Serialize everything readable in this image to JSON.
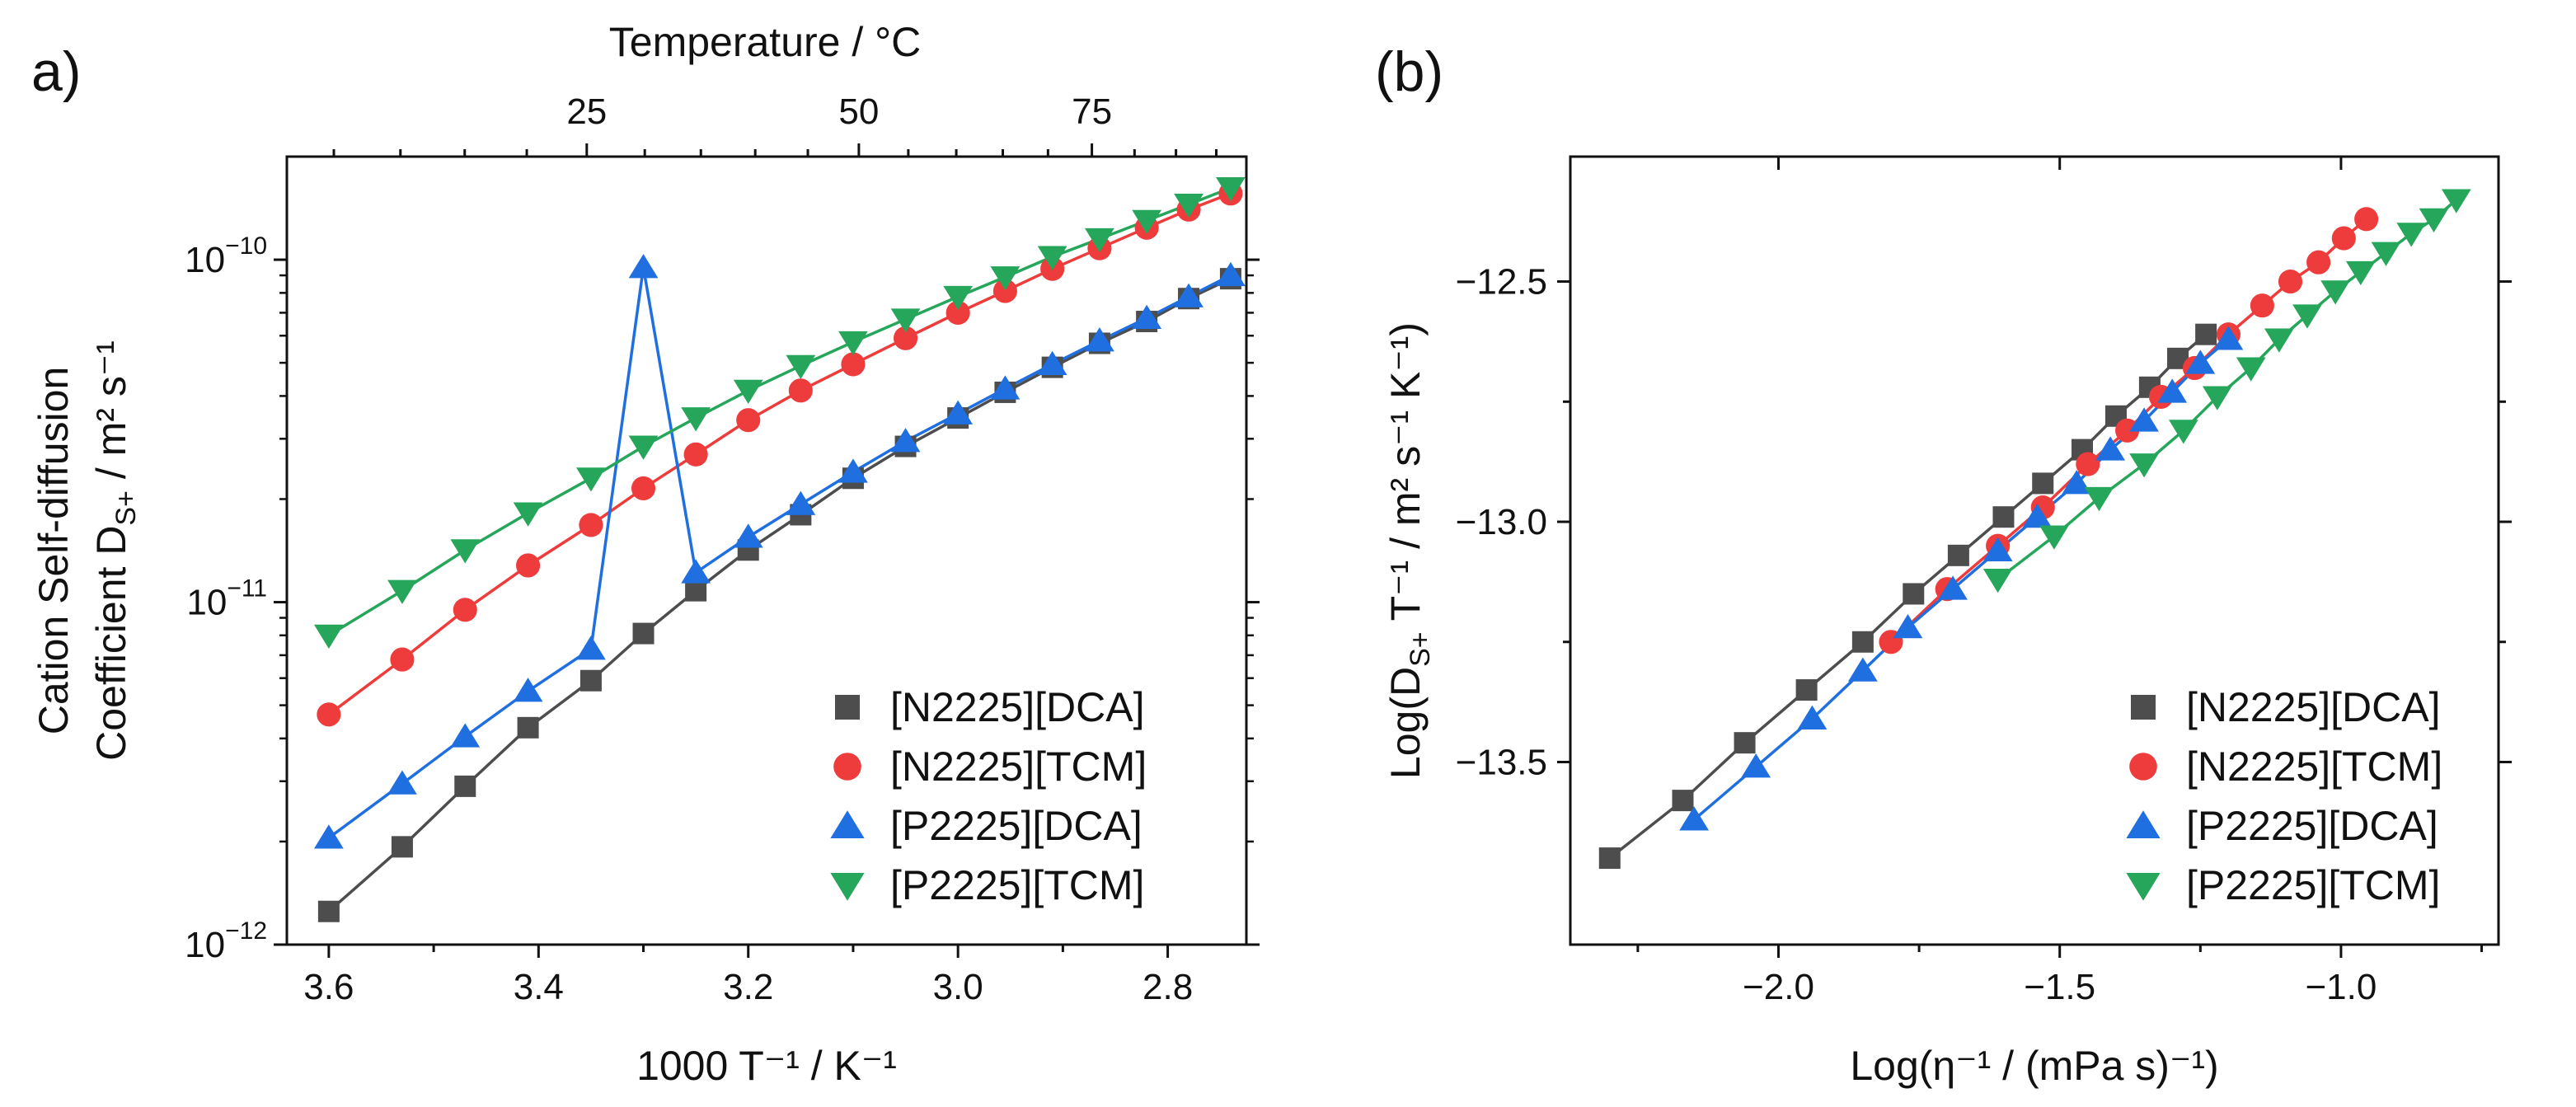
{
  "colors": {
    "N2225_DCA": "#4d4d4d",
    "N2225_TCM": "#ee3b3b",
    "P2225_DCA": "#1f6fe0",
    "P2225_TCM": "#26a65b"
  },
  "chart_data": [
    {
      "panel_label": "a)",
      "type": "line",
      "yscale": "log",
      "xlim": [
        3.64,
        2.725
      ],
      "ylim": [
        1e-12,
        2e-10
      ],
      "xticks": [
        "3.6",
        "3.4",
        "3.2",
        "3.0",
        "2.8"
      ],
      "xtick_values": [
        3.6,
        3.4,
        3.2,
        3.0,
        2.8
      ],
      "yticks": [
        "10",
        "10",
        "10"
      ],
      "ytick_exponents": [
        "−12",
        "−11",
        "−10"
      ],
      "ytick_values": [
        1e-12,
        1e-11,
        1e-10
      ],
      "xlabel": "1000 T⁻¹ / K⁻¹",
      "ylabel_line1": "Cation Self-diffusion",
      "ylabel_line2": "Coefficient D",
      "ylabel_sub": "S+",
      "ylabel_units": " / m² s⁻¹",
      "top_axis_title": "Temperature / °C",
      "top_ticks": [
        "25",
        "50",
        "75"
      ],
      "top_tick_celsius": [
        25,
        50,
        75
      ],
      "legend_position": "lower-right",
      "series": [
        {
          "name": "[N2225][DCA]",
          "marker": "square",
          "x": [
            3.6,
            3.53,
            3.47,
            3.41,
            3.35,
            3.3,
            3.25,
            3.2,
            3.15,
            3.1,
            3.05,
            3.0,
            2.955,
            2.91,
            2.865,
            2.82,
            2.78,
            2.74
          ],
          "y": [
            1.25e-12,
            1.93e-12,
            2.9e-12,
            4.3e-12,
            5.9e-12,
            8.1e-12,
            1.08e-11,
            1.42e-11,
            1.8e-11,
            2.3e-11,
            2.85e-11,
            3.45e-11,
            4.1e-11,
            4.85e-11,
            5.7e-11,
            6.6e-11,
            7.7e-11,
            8.8e-11
          ]
        },
        {
          "name": "[N2225][TCM]",
          "marker": "circle",
          "x": [
            3.6,
            3.53,
            3.47,
            3.41,
            3.35,
            3.3,
            3.25,
            3.2,
            3.15,
            3.1,
            3.05,
            3.0,
            2.955,
            2.91,
            2.865,
            2.82,
            2.78,
            2.74
          ],
          "y": [
            4.7e-12,
            6.8e-12,
            9.5e-12,
            1.28e-11,
            1.68e-11,
            2.15e-11,
            2.7e-11,
            3.4e-11,
            4.15e-11,
            4.95e-11,
            5.9e-11,
            7e-11,
            8.1e-11,
            9.4e-11,
            1.08e-10,
            1.24e-10,
            1.4e-10,
            1.56e-10
          ]
        },
        {
          "name": "[P2225][DCA]",
          "marker": "triangle-up",
          "x": [
            3.6,
            3.53,
            3.47,
            3.41,
            3.35,
            3.3,
            3.25,
            3.2,
            3.15,
            3.1,
            3.05,
            3.0,
            2.955,
            2.91,
            2.865,
            2.82,
            2.78,
            2.74
          ],
          "y": [
            2.05e-12,
            2.95e-12,
            4.05e-12,
            5.5e-12,
            7.3e-12,
            9.5e-11,
            1.22e-11,
            1.55e-11,
            1.93e-11,
            2.4e-11,
            2.95e-11,
            3.55e-11,
            4.2e-11,
            4.95e-11,
            5.8e-11,
            6.75e-11,
            7.8e-11,
            9e-11
          ]
        },
        {
          "name": "[P2225][TCM]",
          "marker": "triangle-down",
          "x": [
            3.6,
            3.53,
            3.47,
            3.41,
            3.35,
            3.3,
            3.25,
            3.2,
            3.15,
            3.1,
            3.05,
            3.0,
            2.955,
            2.91,
            2.865,
            2.82,
            2.78,
            2.74
          ],
          "y": [
            8e-12,
            1.08e-11,
            1.42e-11,
            1.82e-11,
            2.3e-11,
            2.85e-11,
            3.45e-11,
            4.15e-11,
            4.9e-11,
            5.75e-11,
            6.7e-11,
            7.8e-11,
            8.9e-11,
            1.02e-10,
            1.15e-10,
            1.3e-10,
            1.45e-10,
            1.62e-10
          ]
        }
      ]
    },
    {
      "panel_label": "(b)",
      "type": "line",
      "yscale": "linear",
      "xlim": [
        -2.37,
        -0.72
      ],
      "ylim": [
        -13.88,
        -12.24
      ],
      "xticks": [
        "−2.0",
        "−1.5",
        "−1.0"
      ],
      "xtick_values": [
        -2.0,
        -1.5,
        -1.0
      ],
      "yticks": [
        "−12.5",
        "−13.0",
        "−13.5"
      ],
      "ytick_values": [
        -12.5,
        -13.0,
        -13.5
      ],
      "xlabel": "Log(η⁻¹ / (mPa s)⁻¹)",
      "ylabel_prefix": "Log(D",
      "ylabel_sub": "S+",
      "ylabel_rest": " T⁻¹ / m² s⁻¹ K⁻¹)",
      "legend_position": "lower-right",
      "series": [
        {
          "name": "[N2225][DCA]",
          "marker": "square",
          "x": [
            -2.3,
            -2.17,
            -2.06,
            -1.95,
            -1.85,
            -1.76,
            -1.68,
            -1.6,
            -1.53,
            -1.46,
            -1.4,
            -1.34,
            -1.29,
            -1.24
          ],
          "y": [
            -13.7,
            -13.58,
            -13.46,
            -13.35,
            -13.25,
            -13.15,
            -13.07,
            -12.99,
            -12.92,
            -12.85,
            -12.78,
            -12.72,
            -12.66,
            -12.61
          ]
        },
        {
          "name": "[N2225][TCM]",
          "marker": "circle",
          "x": [
            -1.8,
            -1.7,
            -1.61,
            -1.53,
            -1.45,
            -1.38,
            -1.32,
            -1.26,
            -1.2,
            -1.14,
            -1.09,
            -1.04,
            -0.995,
            -0.955
          ],
          "y": [
            -13.25,
            -13.14,
            -13.05,
            -12.97,
            -12.88,
            -12.81,
            -12.74,
            -12.68,
            -12.61,
            -12.55,
            -12.5,
            -12.46,
            -12.41,
            -12.37
          ]
        },
        {
          "name": "[P2225][DCA]",
          "marker": "triangle-up",
          "x": [
            -2.15,
            -2.04,
            -1.94,
            -1.85,
            -1.77,
            -1.69,
            -1.61,
            -1.54,
            -1.47,
            -1.41,
            -1.35,
            -1.3,
            -1.25,
            -1.2
          ],
          "y": [
            -13.62,
            -13.51,
            -13.41,
            -13.31,
            -13.22,
            -13.14,
            -13.06,
            -12.99,
            -12.92,
            -12.85,
            -12.79,
            -12.73,
            -12.67,
            -12.62
          ]
        },
        {
          "name": "[P2225][TCM]",
          "marker": "triangle-down",
          "x": [
            -1.61,
            -1.51,
            -1.43,
            -1.35,
            -1.28,
            -1.22,
            -1.16,
            -1.11,
            -1.06,
            -1.01,
            -0.965,
            -0.92,
            -0.875,
            -0.835,
            -0.795
          ],
          "y": [
            -13.12,
            -13.03,
            -12.95,
            -12.88,
            -12.81,
            -12.74,
            -12.68,
            -12.62,
            -12.57,
            -12.52,
            -12.48,
            -12.44,
            -12.4,
            -12.37,
            -12.33
          ]
        }
      ]
    }
  ]
}
